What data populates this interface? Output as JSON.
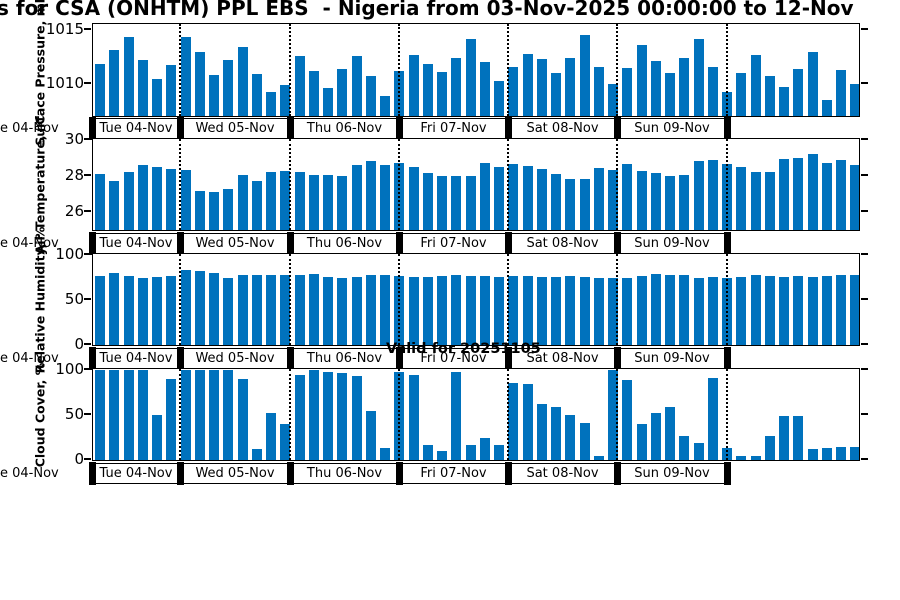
{
  "title": "s for CSA (ONHTM) PPL EBS  - Nigeria from 03-Nov-2025 00:00:00 to 12-Nov",
  "valid_label": "Valid for 20251105",
  "axis_fragment_label": "e 04-Nov",
  "colors": {
    "bar": "#0072BD",
    "axis": "#000000",
    "background": "#ffffff"
  },
  "day_labels": [
    "Tue 04-Nov",
    "Wed 05-Nov",
    "Thu 06-Nov",
    "Fri 07-Nov",
    "Sat 08-Nov",
    "Sun 09-Nov"
  ],
  "chart_data": [
    {
      "type": "bar",
      "name": "surface-pressure",
      "ylabel": "Surface Pressure, mb",
      "yticks": [
        1015,
        1010
      ],
      "ylim": [
        1007,
        1015.5
      ],
      "grid": "vertical-dotted-day-boundaries",
      "values": [
        1011.9,
        1013.2,
        1014.4,
        1012.2,
        1010.5,
        1011.8,
        1014.4,
        1013.0,
        1010.8,
        1012.2,
        1013.4,
        1010.9,
        1009.2,
        1009.9,
        1012.6,
        1011.2,
        1009.6,
        1011.4,
        1012.6,
        1010.7,
        1008.9,
        1011.2,
        1012.7,
        1011.9,
        1011.1,
        1012.4,
        1014.2,
        1012.0,
        1010.3,
        1011.6,
        1012.8,
        1012.3,
        1011.0,
        1012.4,
        1014.6,
        1011.6,
        1010.0,
        1011.5,
        1013.6,
        1012.1,
        1011.0,
        1012.4,
        1014.2,
        1011.6,
        1009.2,
        1011.0,
        1012.7,
        1010.7,
        1009.7,
        1011.4,
        1013.0,
        1008.5,
        1011.3,
        1010.0
      ]
    },
    {
      "type": "bar",
      "name": "air-temperature",
      "ylabel": "Air Temperature, °C",
      "yticks": [
        30,
        28,
        26
      ],
      "ylim": [
        25,
        30
      ],
      "grid": "vertical-dotted-day-boundaries",
      "values": [
        28.1,
        27.7,
        28.25,
        28.6,
        28.5,
        28.4,
        28.35,
        27.15,
        27.1,
        27.3,
        28.05,
        27.75,
        28.25,
        28.3,
        28.25,
        28.05,
        28.05,
        28.0,
        28.6,
        28.85,
        28.6,
        28.7,
        28.5,
        28.15,
        28.0,
        28.0,
        28.0,
        28.7,
        28.5,
        28.65,
        28.55,
        28.4,
        28.1,
        27.85,
        27.85,
        28.45,
        28.35,
        28.65,
        28.3,
        28.15,
        28.0,
        28.05,
        28.85,
        28.9,
        28.65,
        28.5,
        28.25,
        28.2,
        28.95,
        29.0,
        29.2,
        28.75,
        28.9,
        28.6
      ]
    },
    {
      "type": "bar",
      "name": "relative-humidity",
      "ylabel": "Relative Humidity, %",
      "yticks": [
        100,
        50,
        0
      ],
      "ylim": [
        0,
        100
      ],
      "grid": "vertical-dotted-day-boundaries",
      "values": [
        77,
        80,
        77,
        75,
        76,
        77,
        83,
        82,
        80,
        75,
        78,
        78,
        78,
        78,
        78,
        79,
        76,
        74,
        76,
        78,
        78,
        77,
        76,
        76,
        77,
        78,
        77,
        77,
        76,
        77,
        77,
        76,
        76,
        77,
        76,
        75,
        74,
        75,
        77,
        79,
        78,
        78,
        75,
        76,
        75,
        76,
        78,
        77,
        76,
        77,
        76,
        77,
        78,
        78
      ]
    },
    {
      "type": "bar",
      "name": "cloud-cover",
      "ylabel": "Cloud Cover, %",
      "yticks": [
        100,
        50,
        0
      ],
      "ylim": [
        0,
        100
      ],
      "grid": "vertical-dotted-day-boundaries",
      "values": [
        100,
        100,
        100,
        100,
        50,
        90,
        100,
        100,
        100,
        100,
        90,
        12,
        52,
        40,
        95,
        100,
        98,
        97,
        93,
        55,
        13,
        98,
        94,
        17,
        10,
        98,
        17,
        24,
        17,
        86,
        85,
        62,
        59,
        50,
        41,
        4,
        100,
        89,
        40,
        52,
        59,
        27,
        19,
        91,
        13,
        4,
        5,
        27,
        49,
        49,
        12,
        13,
        14,
        15
      ]
    }
  ]
}
